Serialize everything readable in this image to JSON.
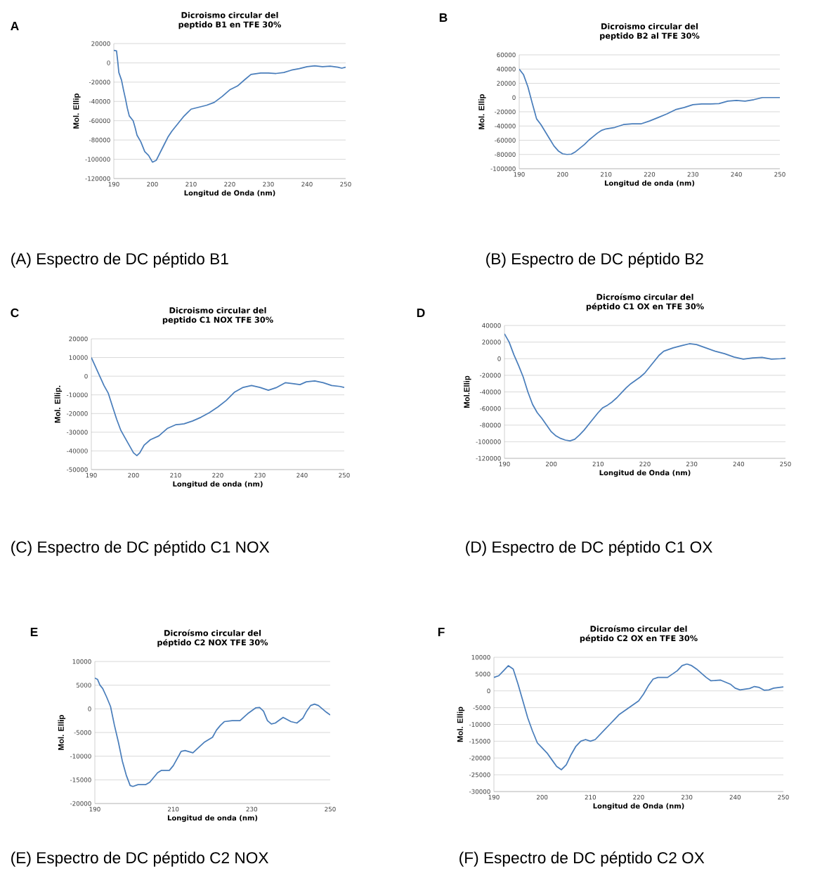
{
  "chart_data": [
    {
      "type": "line",
      "title": "Dicroismo circular del peptido B1 en TFE 30%",
      "xlabel": "Longitud de Onda (nm)",
      "ylabel": "Mol. Ellip",
      "color": "#4a7ebb",
      "grid": "y",
      "xlim": [
        190,
        250
      ],
      "xticks": [
        190,
        200,
        210,
        220,
        230,
        240,
        250
      ],
      "ylim": [
        -120000,
        20000
      ],
      "yticks": [
        -120000,
        -100000,
        -80000,
        -60000,
        -40000,
        -20000,
        0,
        20000
      ],
      "x": [
        190,
        190.7,
        191,
        191.3,
        192,
        192.5,
        193,
        193.5,
        194,
        195,
        195.5,
        196,
        197,
        198,
        199,
        200,
        201,
        202,
        203,
        204,
        205,
        206,
        207,
        208,
        209,
        210,
        212,
        214,
        216,
        218,
        220,
        222,
        224,
        225.5,
        228,
        230,
        232,
        234,
        236,
        238,
        240,
        242,
        244,
        246,
        248,
        249,
        250
      ],
      "values": [
        13000,
        12500,
        2000,
        -10000,
        -18000,
        -28000,
        -37000,
        -47000,
        -55000,
        -60000,
        -67000,
        -75000,
        -82000,
        -92000,
        -96000,
        -103000,
        -101000,
        -93000,
        -85000,
        -77000,
        -71000,
        -66000,
        -61000,
        -56000,
        -52000,
        -48000,
        -46000,
        -44000,
        -41000,
        -35000,
        -28000,
        -24000,
        -17000,
        -12000,
        -10500,
        -10500,
        -11000,
        -10000,
        -7500,
        -6000,
        -4000,
        -3000,
        -4000,
        -3500,
        -4500,
        -5500,
        -4500
      ],
      "annotations": [
        "A",
        "(A) Espectro de DC péptido B1"
      ]
    },
    {
      "type": "line",
      "title": "Dicroismo circular del peptido B2 al TFE 30%",
      "xlabel": "Longitud de onda (nm)",
      "ylabel": "Mol. Ellip",
      "color": "#4a7ebb",
      "grid": "y",
      "xlim": [
        190,
        250
      ],
      "xticks": [
        190,
        200,
        210,
        220,
        230,
        240,
        250
      ],
      "ylim": [
        -100000,
        60000
      ],
      "yticks": [
        -100000,
        -80000,
        -60000,
        -40000,
        -20000,
        0,
        20000,
        40000,
        60000
      ],
      "x": [
        190,
        191,
        192,
        193,
        194,
        195,
        196,
        197,
        198,
        199,
        200,
        201,
        202,
        203,
        204,
        205,
        206,
        207,
        208,
        209,
        210,
        212,
        214,
        216,
        218,
        220,
        222,
        224,
        226,
        228,
        230,
        232,
        234,
        236,
        238,
        240,
        242,
        244,
        246,
        248,
        250
      ],
      "values": [
        40000,
        32000,
        15000,
        -8000,
        -30000,
        -38000,
        -48000,
        -58000,
        -68000,
        -75000,
        -79000,
        -80000,
        -79500,
        -76000,
        -71000,
        -66000,
        -60000,
        -55000,
        -50000,
        -46000,
        -44000,
        -42000,
        -38000,
        -37000,
        -37000,
        -33000,
        -28000,
        -23000,
        -17000,
        -14000,
        -10000,
        -9000,
        -9000,
        -8500,
        -5000,
        -4000,
        -5000,
        -3000,
        0,
        0,
        0
      ],
      "annotations": [
        "B",
        "(B) Espectro de DC péptido B2"
      ]
    },
    {
      "type": "line",
      "title": "Dicroismo circular del peptido  C1 NOX TFE 30%",
      "xlabel": "Longitud de onda (nm)",
      "ylabel": "Mol. Ellip.",
      "color": "#4a7ebb",
      "grid": "y",
      "xlim": [
        190,
        250
      ],
      "xticks": [
        190,
        200,
        210,
        220,
        230,
        240,
        250
      ],
      "ylim": [
        -50000,
        20000
      ],
      "yticks": [
        -50000,
        -40000,
        -30000,
        -20000,
        -10000,
        0,
        10000,
        20000
      ],
      "x": [
        190,
        191,
        192,
        193,
        194,
        195,
        196,
        197,
        198,
        199,
        200,
        200.8,
        201.5,
        202.5,
        204,
        206,
        208,
        210,
        212,
        214,
        216,
        218,
        220,
        222,
        224,
        226,
        228,
        230,
        232,
        234,
        236,
        238,
        239.5,
        241,
        243,
        245,
        247,
        249,
        250
      ],
      "values": [
        10000,
        5000,
        0,
        -5000,
        -9000,
        -16000,
        -23000,
        -29000,
        -33000,
        -37000,
        -41000,
        -42500,
        -41000,
        -37000,
        -34000,
        -32000,
        -28000,
        -26000,
        -25500,
        -24000,
        -22000,
        -19500,
        -16500,
        -13000,
        -8500,
        -6000,
        -5000,
        -6000,
        -7500,
        -6000,
        -3500,
        -4000,
        -4500,
        -3000,
        -2500,
        -3500,
        -5000,
        -5500,
        -6000
      ],
      "annotations": [
        "C",
        "(C) Espectro de DC péptido C1 NOX"
      ]
    },
    {
      "type": "line",
      "title": "Dicroísmo circular del péptido  C1 OX  en TFE 30%",
      "xlabel": "Longitud de Onda (nm)",
      "ylabel": "Mol.Ellip",
      "color": "#4a7ebb",
      "grid": "y",
      "xlim": [
        190,
        250
      ],
      "xticks": [
        190,
        200,
        210,
        220,
        230,
        240,
        250
      ],
      "ylim": [
        -120000,
        40000
      ],
      "yticks": [
        -120000,
        -100000,
        -80000,
        -60000,
        -40000,
        -20000,
        0,
        20000,
        40000
      ],
      "x": [
        190,
        191,
        192,
        193,
        194,
        195,
        196,
        197,
        198,
        199,
        200,
        201,
        202,
        203,
        204,
        205,
        206,
        207,
        208,
        209,
        210,
        211,
        212,
        213,
        214,
        215,
        216,
        217,
        218,
        219,
        220,
        221,
        222,
        223,
        224,
        226,
        228,
        229.5,
        231,
        233,
        235,
        237,
        239,
        241,
        243,
        245,
        247,
        249,
        250
      ],
      "values": [
        30000,
        20000,
        5000,
        -8000,
        -22000,
        -40000,
        -55000,
        -65000,
        -72000,
        -80000,
        -88000,
        -93000,
        -96000,
        -98000,
        -99000,
        -97000,
        -92000,
        -86000,
        -79000,
        -72000,
        -65000,
        -59000,
        -56000,
        -52000,
        -47000,
        -41000,
        -35000,
        -30000,
        -26000,
        -22000,
        -17000,
        -10000,
        -3000,
        4000,
        9000,
        13000,
        16000,
        18000,
        17000,
        13000,
        9000,
        6000,
        2000,
        -500,
        1000,
        1500,
        -500,
        0,
        500
      ],
      "annotations": [
        "D",
        "(D) Espectro de DC péptido C1 OX"
      ]
    },
    {
      "type": "line",
      "title": "Dicroísmo circular del péptido C2 NOX  TFE 30%",
      "xlabel": "Longitud de onda (nm)",
      "ylabel": "Mol. Ellip",
      "color": "#4a7ebb",
      "grid": "y",
      "xlim": [
        190,
        250
      ],
      "xticks": [
        190,
        210,
        230,
        250
      ],
      "ylim": [
        -20000,
        10000
      ],
      "yticks": [
        -20000,
        -15000,
        -10000,
        -5000,
        0,
        5000,
        10000
      ],
      "x": [
        190,
        190.7,
        191.3,
        192,
        193,
        194,
        195,
        196,
        197,
        198,
        199,
        199.7,
        201,
        203,
        204,
        205,
        206,
        207,
        209,
        210,
        211,
        212,
        213,
        215,
        216,
        218,
        220,
        221,
        222,
        223,
        225,
        227,
        229,
        231,
        232,
        233,
        234,
        235,
        236,
        238,
        240,
        241.5,
        243,
        244,
        245,
        246,
        247,
        248,
        249,
        250
      ],
      "values": [
        6500,
        6200,
        5000,
        4300,
        2500,
        500,
        -3500,
        -7000,
        -11000,
        -14000,
        -16200,
        -16400,
        -16000,
        -16000,
        -15500,
        -14500,
        -13500,
        -13000,
        -13000,
        -12000,
        -10500,
        -9000,
        -8800,
        -9300,
        -8500,
        -7000,
        -6000,
        -4500,
        -3500,
        -2700,
        -2500,
        -2500,
        -1000,
        200,
        300,
        -500,
        -2500,
        -3200,
        -3000,
        -1800,
        -2700,
        -3000,
        -2000,
        -500,
        700,
        1000,
        700,
        0,
        -700,
        -1300
      ],
      "annotations": [
        "E",
        "(E) Espectro de DC péptido C2 NOX"
      ]
    },
    {
      "type": "line",
      "title": "Dicroísmo circular del péptido C2 OX en TFE 30%",
      "xlabel": "Longitud de Onda (nm)",
      "ylabel": "Mol. Ellip",
      "color": "#4a7ebb",
      "grid": "y",
      "xlim": [
        190,
        250
      ],
      "xticks": [
        190,
        200,
        210,
        220,
        230,
        240,
        250
      ],
      "ylim": [
        -30000,
        10000
      ],
      "yticks": [
        -30000,
        -25000,
        -20000,
        -15000,
        -10000,
        -5000,
        0,
        5000,
        10000
      ],
      "x": [
        190,
        191,
        192,
        193,
        194,
        195,
        196,
        197,
        198,
        199,
        200,
        201,
        202,
        203,
        204,
        205,
        206,
        207,
        208,
        209,
        210,
        211,
        212,
        213,
        214,
        215,
        216,
        218,
        220,
        221,
        222,
        223,
        224,
        226,
        228,
        229,
        230,
        231,
        232,
        234,
        235,
        237,
        239,
        240,
        241,
        243,
        244,
        245,
        246,
        247,
        248,
        250
      ],
      "values": [
        4000,
        4500,
        6000,
        7500,
        6500,
        2000,
        -3000,
        -8000,
        -12000,
        -15500,
        -17000,
        -18500,
        -20500,
        -22500,
        -23500,
        -22000,
        -19000,
        -16500,
        -15000,
        -14500,
        -15000,
        -14500,
        -13000,
        -11500,
        -10000,
        -8500,
        -7000,
        -5000,
        -3000,
        -1000,
        1500,
        3500,
        4000,
        4000,
        6000,
        7500,
        8000,
        7500,
        6500,
        4000,
        3000,
        3200,
        2000,
        800,
        300,
        700,
        1300,
        1000,
        200,
        300,
        800,
        1200
      ],
      "annotations": [
        "F",
        "(F) Espectro de DC péptido C2 OX"
      ]
    }
  ]
}
